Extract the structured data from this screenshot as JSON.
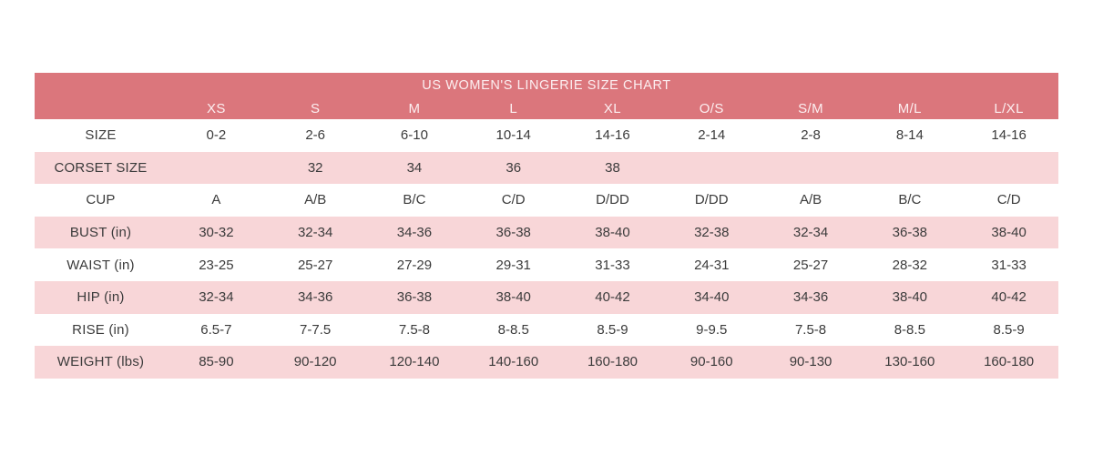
{
  "chart_data": {
    "type": "table",
    "title": "US WOMEN'S LINGERIE SIZE CHART",
    "columns": [
      "XS",
      "S",
      "M",
      "L",
      "XL",
      "O/S",
      "S/M",
      "M/L",
      "L/XL"
    ],
    "rows": [
      {
        "label": "SIZE",
        "values": [
          "0-2",
          "2-6",
          "6-10",
          "10-14",
          "14-16",
          "2-14",
          "2-8",
          "8-14",
          "14-16"
        ]
      },
      {
        "label": "CORSET SIZE",
        "values": [
          "",
          "32",
          "34",
          "36",
          "38",
          "",
          "",
          "",
          ""
        ]
      },
      {
        "label": "CUP",
        "values": [
          "A",
          "A/B",
          "B/C",
          "C/D",
          "D/DD",
          "D/DD",
          "A/B",
          "B/C",
          "C/D"
        ]
      },
      {
        "label": "BUST (in)",
        "values": [
          "30-32",
          "32-34",
          "34-36",
          "36-38",
          "38-40",
          "32-38",
          "32-34",
          "36-38",
          "38-40"
        ]
      },
      {
        "label": "WAIST (in)",
        "values": [
          "23-25",
          "25-27",
          "27-29",
          "29-31",
          "31-33",
          "24-31",
          "25-27",
          "28-32",
          "31-33"
        ]
      },
      {
        "label": "HIP (in)",
        "values": [
          "32-34",
          "34-36",
          "36-38",
          "38-40",
          "40-42",
          "34-40",
          "34-36",
          "38-40",
          "40-42"
        ]
      },
      {
        "label": "RISE (in)",
        "values": [
          "6.5-7",
          "7-7.5",
          "7.5-8",
          "8-8.5",
          "8.5-9",
          "9-9.5",
          "7.5-8",
          "8-8.5",
          "8.5-9"
        ]
      },
      {
        "label": "WEIGHT (lbs)",
        "values": [
          "85-90",
          "90-120",
          "120-140",
          "140-160",
          "160-180",
          "90-160",
          "90-130",
          "130-160",
          "160-180"
        ]
      }
    ],
    "layout": {
      "legend": "none",
      "grid": "off",
      "alternating_row_shading": true
    }
  },
  "colors": {
    "header_bg": "#DB767C",
    "header_text": "#FCEFF1",
    "row_alt_bg": "#F8D6D8",
    "body_text": "#3B3B3B",
    "page_bg": "#FFFFFF"
  }
}
